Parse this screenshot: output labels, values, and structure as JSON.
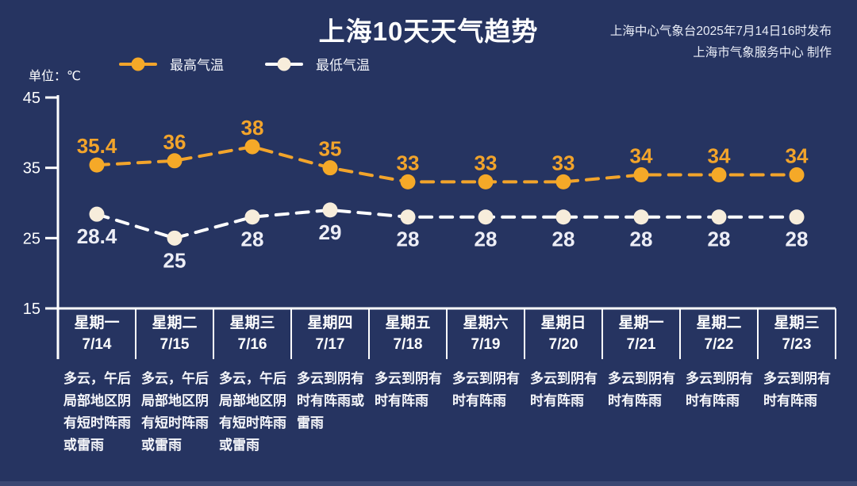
{
  "page": {
    "title": "上海10天天气趋势",
    "publisher_line1": "上海中心气象台2025年7月14日16时发布",
    "publisher_line2": "上海市气象服务中心 制作",
    "unit_label": "单位：℃"
  },
  "legend": {
    "items": [
      {
        "label": "最高气温",
        "line_color": "#F2A42B",
        "dot_color": "#F5A928"
      },
      {
        "label": "最低气温",
        "line_color": "#FFFFFF",
        "dot_color": "#F7EDDB"
      }
    ]
  },
  "chart_data": {
    "type": "line",
    "title": "上海10天天气趋势",
    "unit": "℃",
    "categories": [
      {
        "weekday": "星期一",
        "date": "7/14"
      },
      {
        "weekday": "星期二",
        "date": "7/15"
      },
      {
        "weekday": "星期三",
        "date": "7/16"
      },
      {
        "weekday": "星期四",
        "date": "7/17"
      },
      {
        "weekday": "星期五",
        "date": "7/18"
      },
      {
        "weekday": "星期六",
        "date": "7/19"
      },
      {
        "weekday": "星期日",
        "date": "7/20"
      },
      {
        "weekday": "星期一",
        "date": "7/21"
      },
      {
        "weekday": "星期二",
        "date": "7/22"
      },
      {
        "weekday": "星期三",
        "date": "7/23"
      }
    ],
    "series": [
      {
        "name": "最高气温",
        "values": [
          35.4,
          36,
          38,
          35,
          33,
          33,
          33,
          34,
          34,
          34
        ],
        "line_color": "#F2A42B",
        "marker_color": "#F5A928",
        "label_color": "#F2A42B",
        "line_style": "dashed",
        "label_position": "above"
      },
      {
        "name": "最低气温",
        "values": [
          28.4,
          25,
          28,
          29,
          28,
          28,
          28,
          28,
          28,
          28
        ],
        "line_color": "#FFFFFF",
        "marker_color": "#F7EDDB",
        "label_color": "#EDEEF6",
        "line_style": "dashed",
        "label_position": "below"
      }
    ],
    "ylim": [
      15,
      45
    ],
    "yticks": [
      45,
      35,
      25,
      15
    ],
    "grid": false,
    "legend_position": "top-left",
    "axis_color": "#FFFFFF"
  },
  "weather": {
    "descriptions": [
      "多云，午后局部地区阴有短时阵雨或雷雨",
      "多云，午后局部地区阴有短时阵雨或雷雨",
      "多云，午后局部地区阴有短时阵雨或雷雨",
      "多云到阴有时有阵雨或雷雨",
      "多云到阴有时有阵雨",
      "多云到阴有时有阵雨",
      "多云到阴有时有阵雨",
      "多云到阴有时有阵雨",
      "多云到阴有时有阵雨",
      "多云到阴有时有阵雨"
    ]
  },
  "colors": {
    "background": "#263461",
    "bottom_strip": "#3A4772"
  }
}
